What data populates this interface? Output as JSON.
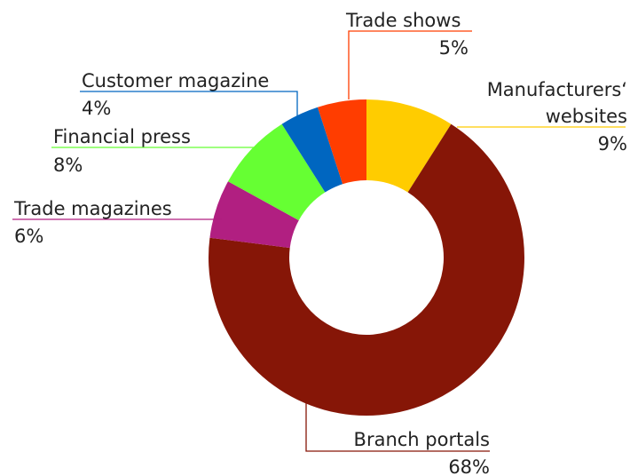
{
  "chart_data": {
    "type": "pie",
    "variant": "donut",
    "title": "",
    "slices": [
      {
        "label": "Manufacturers‘ websites",
        "label_lines": [
          "Manufacturers‘",
          "websites"
        ],
        "value": 9,
        "value_text": "9%",
        "color": "#ffcc00"
      },
      {
        "label": "Branch portals",
        "label_lines": [
          "Branch portals"
        ],
        "value": 68,
        "value_text": "68%",
        "color": "#861607"
      },
      {
        "label": "Trade magazines",
        "label_lines": [
          "Trade magazines"
        ],
        "value": 6,
        "value_text": "6%",
        "color": "#b11f81"
      },
      {
        "label": "Financial press",
        "label_lines": [
          "Financial press"
        ],
        "value": 8,
        "value_text": "8%",
        "color": "#66ff33"
      },
      {
        "label": "Customer magazine",
        "label_lines": [
          "Customer magazine"
        ],
        "value": 4,
        "value_text": "4%",
        "color": "#0066c0"
      },
      {
        "label": "Trade shows",
        "label_lines": [
          "Trade shows"
        ],
        "value": 5,
        "value_text": "5%",
        "color": "#ff3d00"
      }
    ],
    "legend": "none"
  }
}
